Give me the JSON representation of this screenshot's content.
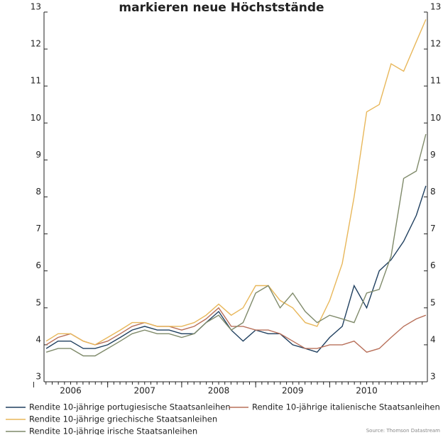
{
  "chart_data": {
    "type": "line",
    "title": "markieren neue Höchststände",
    "source": "Source: Thomson Datastream",
    "x": [
      2006.17,
      2006.33,
      2006.5,
      2006.67,
      2006.83,
      2007.0,
      2007.17,
      2007.33,
      2007.5,
      2007.67,
      2007.83,
      2008.0,
      2008.17,
      2008.33,
      2008.5,
      2008.67,
      2008.83,
      2009.0,
      2009.17,
      2009.33,
      2009.5,
      2009.67,
      2009.83,
      2010.0,
      2010.17,
      2010.33,
      2010.5,
      2010.67,
      2010.83,
      2011.0,
      2011.17,
      2011.3
    ],
    "series": [
      {
        "name": "Rendite 10-jährige portugiesische Staatsanleihen",
        "color": "#1f3f5f",
        "values": [
          3.9,
          4.1,
          4.1,
          3.9,
          3.9,
          4.0,
          4.2,
          4.4,
          4.5,
          4.4,
          4.4,
          4.3,
          4.3,
          4.6,
          4.9,
          4.4,
          4.1,
          4.4,
          4.3,
          4.3,
          4.0,
          3.9,
          3.8,
          4.2,
          4.5,
          5.6,
          5.0,
          6.0,
          6.3,
          6.8,
          7.5,
          8.3
        ]
      },
      {
        "name": "Rendite 10-jährige italienische Staatsanleihen",
        "color": "#b8705a",
        "values": [
          4.0,
          4.2,
          4.3,
          4.1,
          4.0,
          4.1,
          4.3,
          4.5,
          4.6,
          4.5,
          4.5,
          4.4,
          4.5,
          4.7,
          5.0,
          4.5,
          4.5,
          4.4,
          4.4,
          4.3,
          4.1,
          3.9,
          3.9,
          4.0,
          4.0,
          4.1,
          3.8,
          3.9,
          4.2,
          4.5,
          4.7,
          4.8
        ]
      },
      {
        "name": "Rendite 10-jährige griechische Staatsanleihen",
        "color": "#e8b75a",
        "values": [
          4.1,
          4.3,
          4.3,
          4.1,
          4.0,
          4.2,
          4.4,
          4.6,
          4.6,
          4.5,
          4.5,
          4.5,
          4.6,
          4.8,
          5.1,
          4.8,
          5.0,
          5.6,
          5.6,
          5.2,
          5.0,
          4.6,
          4.5,
          5.2,
          6.2,
          8.0,
          10.3,
          10.5,
          11.6,
          11.4,
          12.2,
          12.8
        ]
      },
      {
        "name": "Rendite 10-jährige irische Staatsanleihen",
        "color": "#7f8a6a",
        "values": [
          3.8,
          3.9,
          3.9,
          3.7,
          3.7,
          3.9,
          4.1,
          4.3,
          4.4,
          4.3,
          4.3,
          4.2,
          4.3,
          4.6,
          4.8,
          4.4,
          4.6,
          5.4,
          5.6,
          5.0,
          5.4,
          4.9,
          4.6,
          4.8,
          4.7,
          4.6,
          5.4,
          5.5,
          6.4,
          8.5,
          8.7,
          9.7
        ]
      }
    ],
    "xlim": [
      2006.14,
      2011.32
    ],
    "xticks": [
      2006,
      2007,
      2008,
      2009,
      2010
    ],
    "ylim": [
      3,
      13
    ],
    "yticks": [
      3,
      4,
      5,
      6,
      7,
      8,
      9,
      10,
      11,
      12,
      13
    ],
    "y2lim": [
      3,
      13
    ],
    "y2ticks": [
      3,
      4,
      5,
      6,
      7,
      8,
      9,
      10,
      11,
      12,
      13
    ]
  }
}
